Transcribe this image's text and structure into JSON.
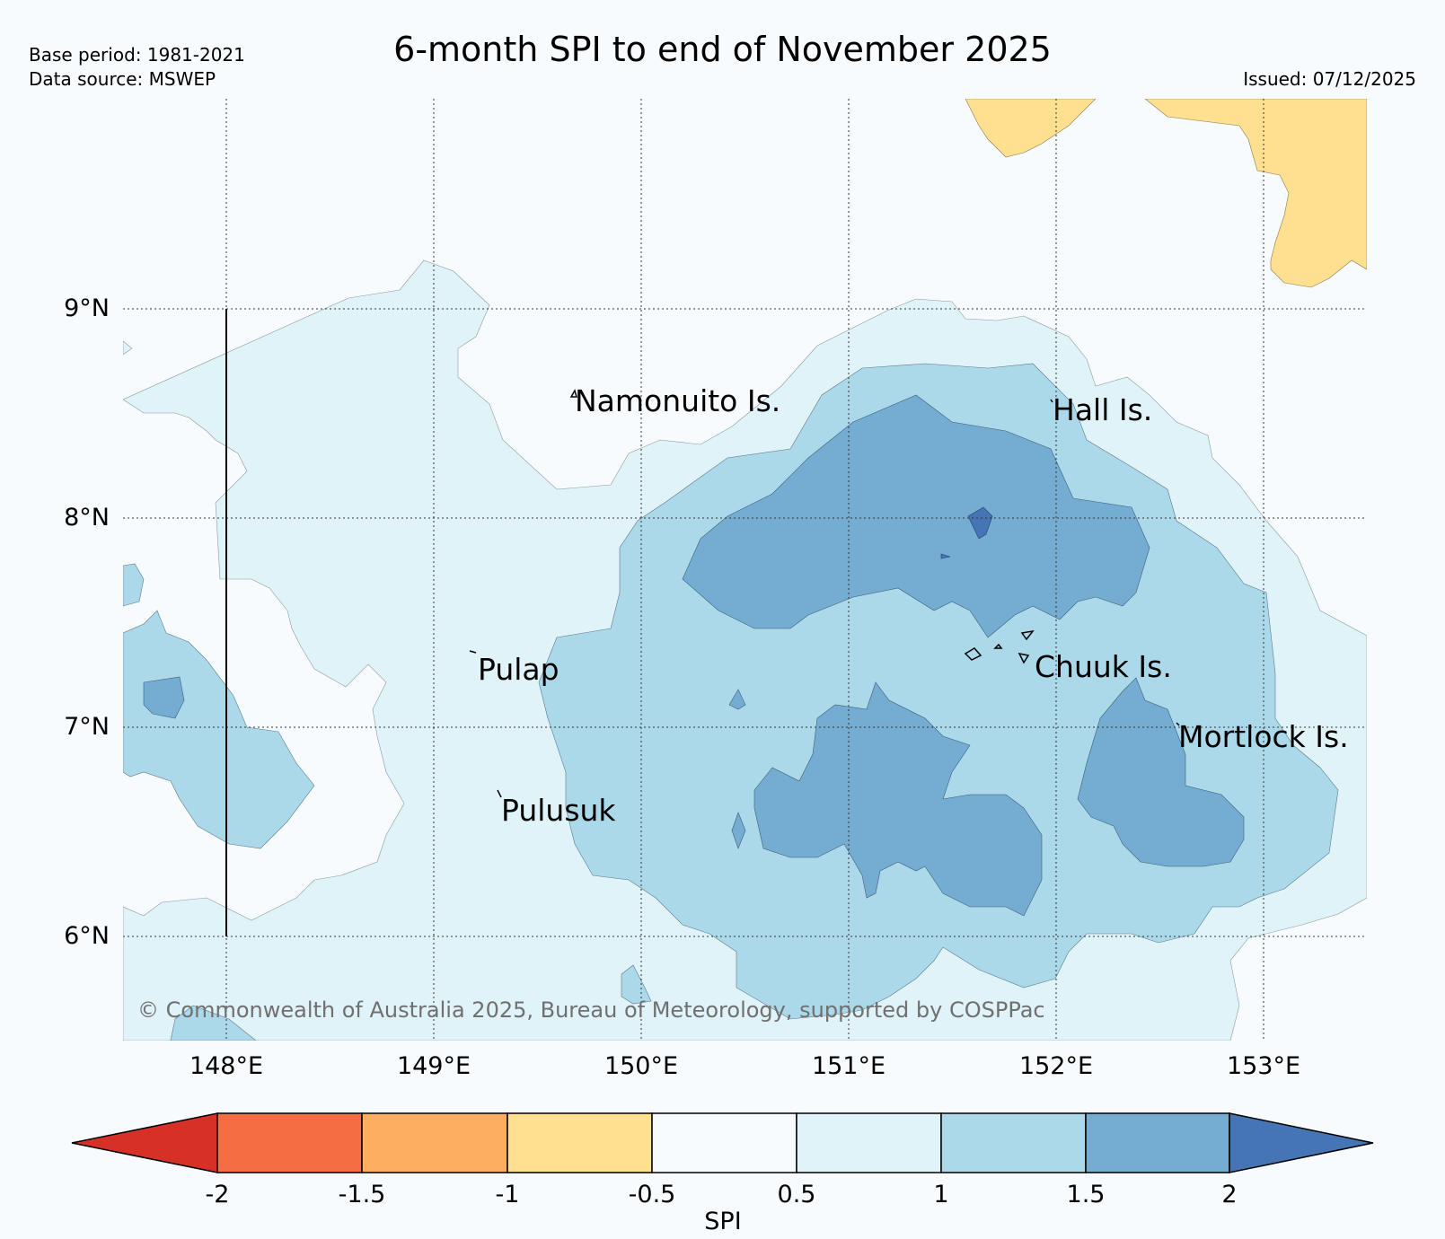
{
  "header": {
    "base_period": "Base period: 1981-2021",
    "data_source": "Data source: MSWEP",
    "title": "6-month SPI to end of November 2025",
    "issued": "Issued: 07/12/2025"
  },
  "map": {
    "lat_labels": [
      "9°N",
      "8°N",
      "7°N",
      "6°N"
    ],
    "lon_labels": [
      "148°E",
      "149°E",
      "150°E",
      "151°E",
      "152°E",
      "153°E"
    ],
    "places": [
      {
        "name": "Namonuito Is."
      },
      {
        "name": "Hall Is."
      },
      {
        "name": "Pulap"
      },
      {
        "name": "Chuuk Is."
      },
      {
        "name": "Mortlock Is."
      },
      {
        "name": "Pulusuk"
      }
    ],
    "copyright": "© Commonwealth of Australia 2025, Bureau of Meteorology, supported by COSPPac"
  },
  "colorbar": {
    "label": "SPI",
    "ticks": [
      "-2",
      "-1.5",
      "-1",
      "-0.5",
      "0.5",
      "1",
      "1.5",
      "2"
    ],
    "colors": [
      "#d73027",
      "#f46d43",
      "#fdae61",
      "#fee090",
      "#f7fbfd",
      "#e0f3f8",
      "#abd9e9",
      "#74add1",
      "#4575b4"
    ]
  }
}
